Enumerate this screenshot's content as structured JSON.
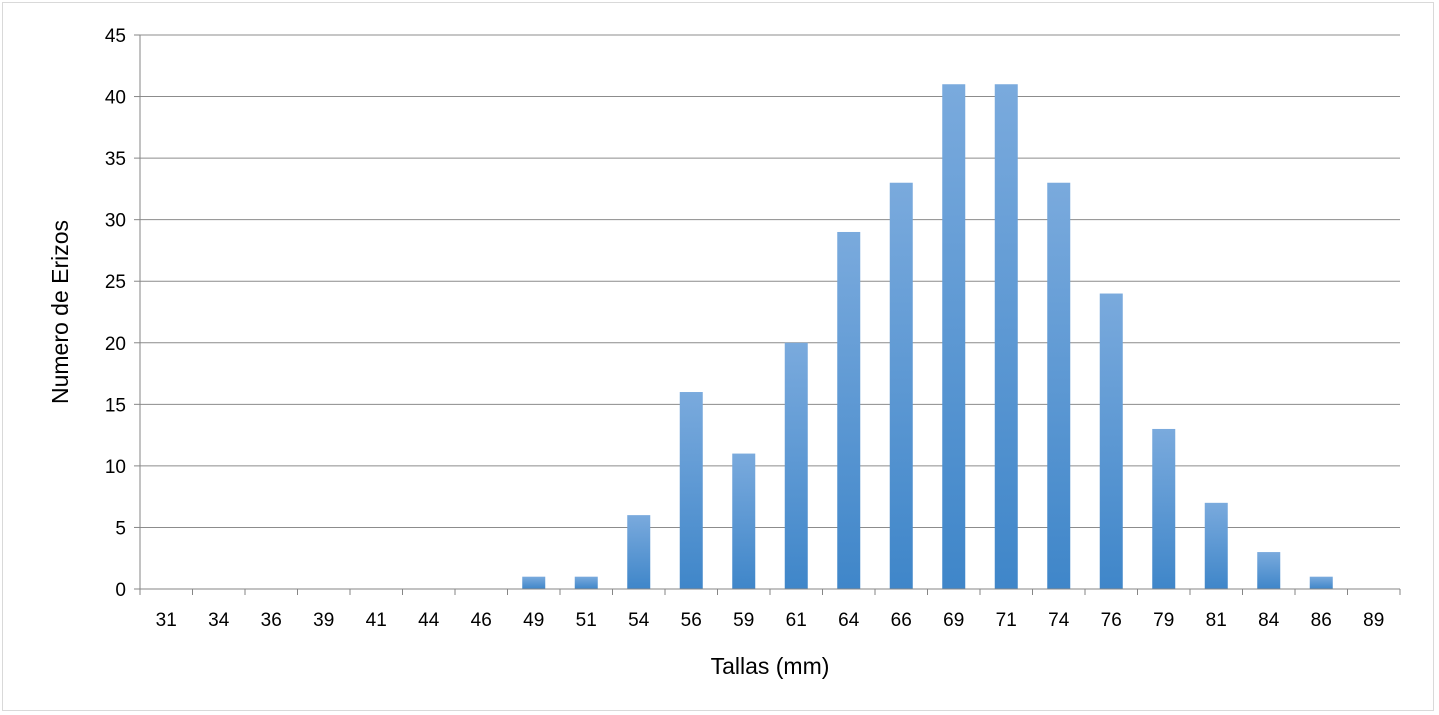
{
  "chart_data": {
    "type": "bar",
    "title": "",
    "xlabel": "Tallas (mm)",
    "ylabel": "Numero de Erizos",
    "categories": [
      "31",
      "34",
      "36",
      "39",
      "41",
      "44",
      "46",
      "49",
      "51",
      "54",
      "56",
      "59",
      "61",
      "64",
      "66",
      "69",
      "71",
      "74",
      "76",
      "79",
      "81",
      "84",
      "86",
      "89"
    ],
    "values": [
      0,
      0,
      0,
      0,
      0,
      0,
      0,
      1,
      1,
      6,
      16,
      11,
      20,
      29,
      33,
      41,
      41,
      33,
      24,
      13,
      7,
      3,
      1,
      0
    ],
    "ylim": [
      0,
      45
    ],
    "yticks": [
      0,
      5,
      10,
      15,
      20,
      25,
      30,
      35,
      40,
      45
    ],
    "grid": true,
    "legend": "none",
    "colors": {
      "bar_top": "#7aaadd",
      "bar_bottom": "#3f86c9",
      "grid": "#8c8c8c",
      "axis": "#868686"
    }
  }
}
